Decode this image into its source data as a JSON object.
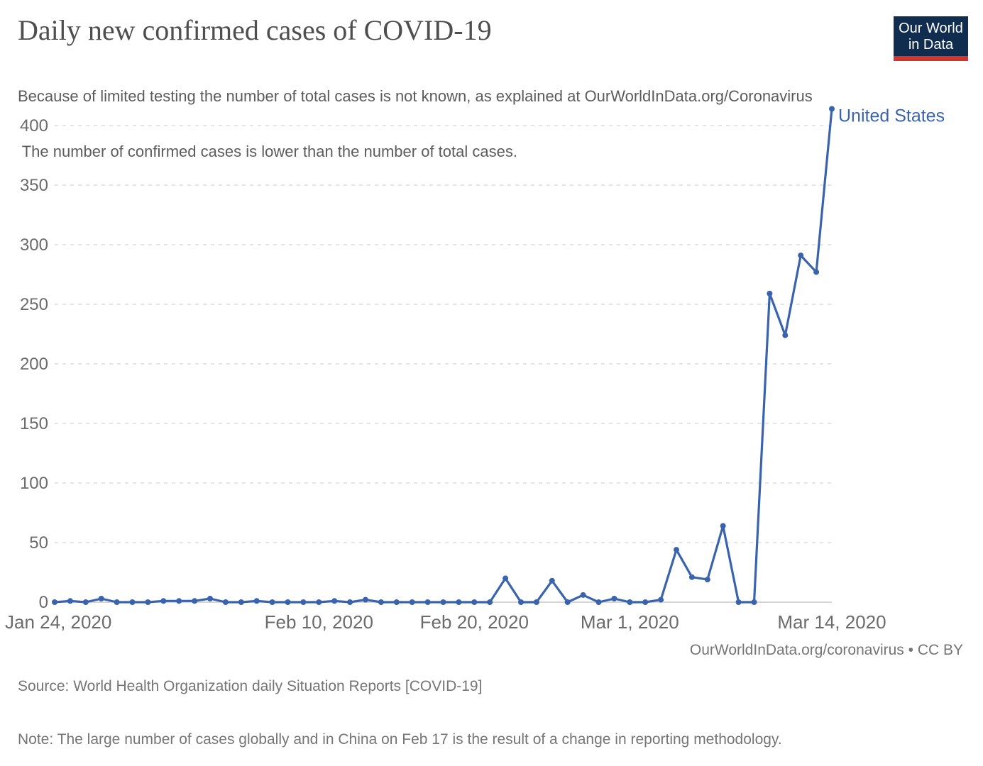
{
  "header": {
    "title": "Daily new confirmed cases of COVID-19",
    "subtitle_line1": "Because of limited testing the number of total cases is not known, as explained at OurWorldInData.org/Coronavirus",
    "subtitle_line2": " The number of confirmed cases is lower than the number of total cases."
  },
  "logo": {
    "line1": "Our World",
    "line2": "in Data",
    "bg_color": "#102D4F",
    "stripe_color": "#D0342C"
  },
  "chart_data": {
    "type": "line",
    "title": "Daily new confirmed cases of COVID-19",
    "xlabel": "",
    "ylabel": "",
    "grid": true,
    "legend_position": "end-of-line",
    "entity_label": "United States",
    "line_color": "#3A63AD",
    "axis_text_color": "#6b6b6b",
    "grid_color": "#dcdcdc",
    "zero_line_color": "#c8c8c8",
    "ylim": [
      0,
      420
    ],
    "yticks": [
      0,
      50,
      100,
      150,
      200,
      250,
      300,
      350,
      400
    ],
    "xticks": [
      {
        "label": "Jan 24, 2020",
        "index": 0,
        "anchor": "start"
      },
      {
        "label": "Feb 10, 2020",
        "index": 17,
        "anchor": "middle"
      },
      {
        "label": "Feb 20, 2020",
        "index": 27,
        "anchor": "middle"
      },
      {
        "label": "Mar 1, 2020",
        "index": 37,
        "anchor": "middle"
      },
      {
        "label": "Mar 14, 2020",
        "index": 50,
        "anchor": "middle"
      }
    ],
    "series": [
      {
        "name": "United States",
        "color": "#3A63AD",
        "x": [
          "2020-01-24",
          "2020-01-25",
          "2020-01-26",
          "2020-01-27",
          "2020-01-28",
          "2020-01-29",
          "2020-01-30",
          "2020-01-31",
          "2020-02-01",
          "2020-02-02",
          "2020-02-03",
          "2020-02-04",
          "2020-02-05",
          "2020-02-06",
          "2020-02-07",
          "2020-02-08",
          "2020-02-09",
          "2020-02-10",
          "2020-02-11",
          "2020-02-12",
          "2020-02-13",
          "2020-02-14",
          "2020-02-15",
          "2020-02-16",
          "2020-02-17",
          "2020-02-18",
          "2020-02-19",
          "2020-02-20",
          "2020-02-21",
          "2020-02-22",
          "2020-02-23",
          "2020-02-24",
          "2020-02-25",
          "2020-02-26",
          "2020-02-27",
          "2020-02-28",
          "2020-02-29",
          "2020-03-01",
          "2020-03-02",
          "2020-03-03",
          "2020-03-04",
          "2020-03-05",
          "2020-03-06",
          "2020-03-07",
          "2020-03-08",
          "2020-03-09",
          "2020-03-10",
          "2020-03-11",
          "2020-03-12",
          "2020-03-13",
          "2020-03-14"
        ],
        "values": [
          0,
          1,
          0,
          3,
          0,
          0,
          0,
          1,
          1,
          1,
          3,
          0,
          0,
          1,
          0,
          0,
          0,
          0,
          1,
          0,
          2,
          0,
          0,
          0,
          0,
          0,
          0,
          0,
          0,
          20,
          0,
          0,
          18,
          0,
          6,
          0,
          3,
          0,
          0,
          2,
          44,
          21,
          19,
          64,
          0,
          0,
          259,
          224,
          291,
          277,
          414
        ]
      }
    ]
  },
  "footer": {
    "source_line": "Source: World Health Organization daily Situation Reports [COVID-19]",
    "note_line": "Note: The large number of cases globally and in China on Feb 17 is the result of a change in reporting methodology.",
    "link_text": "OurWorldInData.org/coronavirus • CC BY"
  }
}
